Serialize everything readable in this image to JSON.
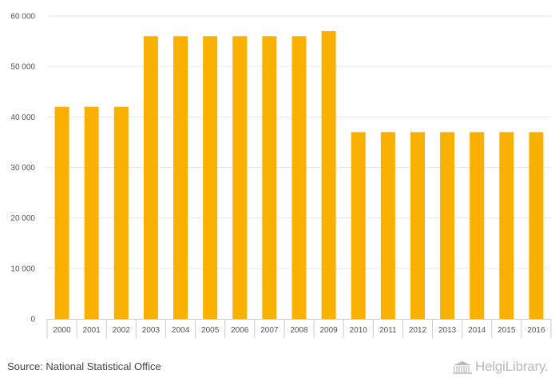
{
  "chart_data": {
    "type": "bar",
    "categories": [
      "2000",
      "2001",
      "2002",
      "2003",
      "2004",
      "2005",
      "2006",
      "2007",
      "2008",
      "2009",
      "2010",
      "2011",
      "2012",
      "2013",
      "2014",
      "2015",
      "2016"
    ],
    "values": [
      42000,
      42000,
      42000,
      56000,
      56000,
      56000,
      56000,
      56000,
      56000,
      57000,
      37000,
      37000,
      37000,
      37000,
      37000,
      37000,
      37000
    ],
    "yticks": [
      0,
      10000,
      20000,
      30000,
      40000,
      50000,
      60000
    ],
    "ytick_labels": [
      "0",
      "10 000",
      "20 000",
      "30 000",
      "40 000",
      "50 000",
      "60 000"
    ],
    "ylim": [
      0,
      60000
    ],
    "title": "",
    "xlabel": "",
    "ylabel": "",
    "grid": true,
    "bar_color": "#f9b000",
    "grid_color": "#e6e6e6"
  },
  "footer": {
    "source": "Source: National Statistical Office",
    "logo_text": "HelgiLibrary."
  }
}
